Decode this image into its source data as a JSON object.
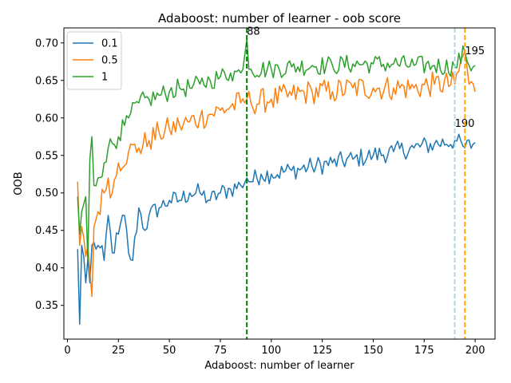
{
  "chart_data": {
    "type": "line",
    "title": "Adaboost: number of learner - oob score",
    "xlabel": "Adaboost: number of learner",
    "ylabel": "OOB",
    "xlim": [
      -1.75,
      209.75
    ],
    "ylim": [
      0.305,
      0.72
    ],
    "xticks": [
      0,
      25,
      50,
      75,
      100,
      125,
      150,
      175,
      200
    ],
    "yticks": [
      0.35,
      0.4,
      0.45,
      0.5,
      0.55,
      0.6,
      0.65,
      0.7
    ],
    "ytick_labels": [
      "0.35",
      "0.40",
      "0.45",
      "0.50",
      "0.55",
      "0.60",
      "0.65",
      "0.70"
    ],
    "legend_position": "upper-left",
    "grid": false,
    "x_start": 5,
    "x_end": 200,
    "series": [
      {
        "name": "0.1",
        "color": "#1f77b4",
        "anchors": [
          [
            5,
            0.425
          ],
          [
            6,
            0.325
          ],
          [
            7,
            0.43
          ],
          [
            8,
            0.415
          ],
          [
            9,
            0.38
          ],
          [
            10,
            0.412
          ],
          [
            11,
            0.38
          ],
          [
            12,
            0.43
          ],
          [
            15,
            0.43
          ],
          [
            18,
            0.41
          ],
          [
            20,
            0.47
          ],
          [
            22,
            0.42
          ],
          [
            25,
            0.445
          ],
          [
            28,
            0.47
          ],
          [
            30,
            0.42
          ],
          [
            32,
            0.41
          ],
          [
            35,
            0.48
          ],
          [
            38,
            0.45
          ],
          [
            40,
            0.47
          ],
          [
            45,
            0.48
          ],
          [
            50,
            0.49
          ],
          [
            55,
            0.49
          ],
          [
            60,
            0.5
          ],
          [
            65,
            0.5
          ],
          [
            70,
            0.49
          ],
          [
            75,
            0.5
          ],
          [
            80,
            0.505
          ],
          [
            85,
            0.51
          ],
          [
            88,
            0.52
          ],
          [
            90,
            0.515
          ],
          [
            95,
            0.525
          ],
          [
            100,
            0.525
          ],
          [
            110,
            0.53
          ],
          [
            120,
            0.535
          ],
          [
            130,
            0.54
          ],
          [
            140,
            0.545
          ],
          [
            150,
            0.55
          ],
          [
            160,
            0.555
          ],
          [
            170,
            0.56
          ],
          [
            180,
            0.565
          ],
          [
            190,
            0.57
          ],
          [
            195,
            0.56
          ],
          [
            200,
            0.567
          ]
        ],
        "amplitude": 0.013
      },
      {
        "name": "0.5",
        "color": "#ff7f0e",
        "anchors": [
          [
            5,
            0.515
          ],
          [
            6,
            0.43
          ],
          [
            7,
            0.455
          ],
          [
            8,
            0.44
          ],
          [
            9,
            0.415
          ],
          [
            10,
            0.43
          ],
          [
            12,
            0.362
          ],
          [
            13,
            0.455
          ],
          [
            15,
            0.475
          ],
          [
            18,
            0.5
          ],
          [
            20,
            0.52
          ],
          [
            22,
            0.5
          ],
          [
            25,
            0.54
          ],
          [
            30,
            0.555
          ],
          [
            35,
            0.56
          ],
          [
            40,
            0.57
          ],
          [
            45,
            0.58
          ],
          [
            50,
            0.585
          ],
          [
            55,
            0.59
          ],
          [
            60,
            0.595
          ],
          [
            65,
            0.6
          ],
          [
            70,
            0.605
          ],
          [
            75,
            0.61
          ],
          [
            80,
            0.615
          ],
          [
            85,
            0.62
          ],
          [
            88,
            0.625
          ],
          [
            90,
            0.62
          ],
          [
            100,
            0.625
          ],
          [
            110,
            0.63
          ],
          [
            120,
            0.635
          ],
          [
            130,
            0.635
          ],
          [
            140,
            0.64
          ],
          [
            150,
            0.64
          ],
          [
            160,
            0.64
          ],
          [
            170,
            0.64
          ],
          [
            180,
            0.645
          ],
          [
            190,
            0.645
          ],
          [
            195,
            0.69
          ],
          [
            197,
            0.645
          ],
          [
            200,
            0.635
          ]
        ],
        "amplitude": 0.017
      },
      {
        "name": "1",
        "color": "#2ca02c",
        "anchors": [
          [
            5,
            0.495
          ],
          [
            6,
            0.445
          ],
          [
            7,
            0.475
          ],
          [
            9,
            0.495
          ],
          [
            10,
            0.41
          ],
          [
            11,
            0.545
          ],
          [
            12,
            0.575
          ],
          [
            13,
            0.51
          ],
          [
            15,
            0.52
          ],
          [
            18,
            0.54
          ],
          [
            20,
            0.56
          ],
          [
            25,
            0.575
          ],
          [
            28,
            0.59
          ],
          [
            30,
            0.6
          ],
          [
            35,
            0.62
          ],
          [
            40,
            0.625
          ],
          [
            45,
            0.63
          ],
          [
            50,
            0.635
          ],
          [
            55,
            0.64
          ],
          [
            60,
            0.64
          ],
          [
            65,
            0.645
          ],
          [
            70,
            0.65
          ],
          [
            75,
            0.655
          ],
          [
            80,
            0.66
          ],
          [
            85,
            0.66
          ],
          [
            88,
            0.705
          ],
          [
            89,
            0.665
          ],
          [
            90,
            0.665
          ],
          [
            100,
            0.665
          ],
          [
            110,
            0.668
          ],
          [
            120,
            0.67
          ],
          [
            130,
            0.67
          ],
          [
            140,
            0.672
          ],
          [
            150,
            0.672
          ],
          [
            160,
            0.672
          ],
          [
            170,
            0.67
          ],
          [
            180,
            0.67
          ],
          [
            190,
            0.668
          ],
          [
            195,
            0.688
          ],
          [
            197,
            0.67
          ],
          [
            200,
            0.67
          ]
        ],
        "amplitude": 0.013
      }
    ],
    "vlines": [
      {
        "x": 88,
        "color": "#008000",
        "label": "88",
        "label_y": 0.711
      },
      {
        "x": 190,
        "color": "#add8e6",
        "label": "190",
        "label_y": 0.588
      },
      {
        "x": 195,
        "color": "#ffa500",
        "label": "195",
        "label_y": 0.685
      }
    ]
  }
}
